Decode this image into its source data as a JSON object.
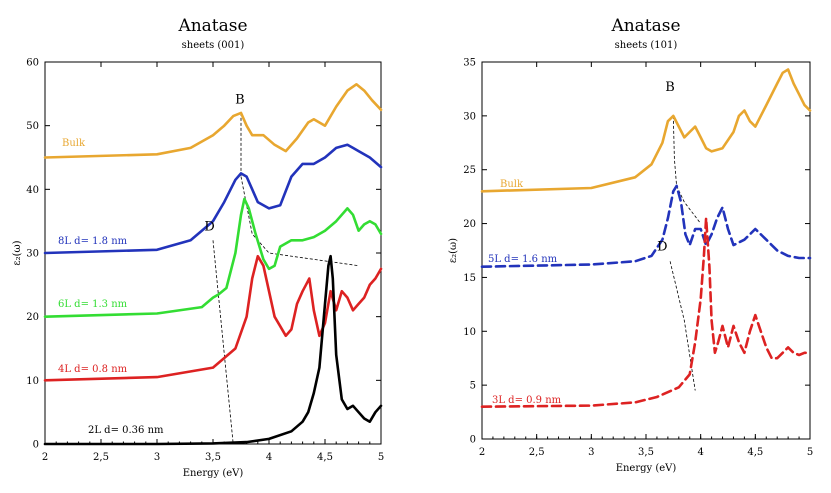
{
  "chart_data": [
    {
      "type": "line",
      "title": "Anatase",
      "subtitle": "sheets (001)",
      "xlabel": "Energy (eV)",
      "ylabel": "ε₂(ω)",
      "xlim": [
        2,
        5
      ],
      "ylim": [
        0,
        60
      ],
      "xticks": [
        "2",
        "2,5",
        "3",
        "3,5",
        "4",
        "4,5",
        "5"
      ],
      "yticks": [
        "0",
        "10",
        "20",
        "30",
        "40",
        "50",
        "60"
      ],
      "series": [
        {
          "name": "Bulk",
          "color": "#e8a730",
          "style": "solid",
          "x": [
            2.0,
            3.0,
            3.3,
            3.5,
            3.6,
            3.68,
            3.75,
            3.8,
            3.85,
            3.95,
            4.05,
            4.15,
            4.25,
            4.35,
            4.4,
            4.45,
            4.5,
            4.6,
            4.7,
            4.78,
            4.85,
            4.92,
            5.0
          ],
          "y": [
            45,
            45.5,
            46.5,
            48.5,
            50,
            51.5,
            52,
            50,
            48.5,
            48.5,
            47,
            46,
            48,
            50.5,
            51,
            50.5,
            50,
            53,
            55.5,
            56.5,
            55.5,
            54,
            52.5
          ]
        },
        {
          "name": "8L  d= 1.8 nm",
          "color": "#2233bb",
          "style": "solid",
          "x": [
            2.0,
            3.0,
            3.3,
            3.5,
            3.6,
            3.7,
            3.75,
            3.8,
            3.85,
            3.9,
            4.0,
            4.1,
            4.2,
            4.3,
            4.4,
            4.5,
            4.6,
            4.7,
            4.75,
            4.8,
            4.9,
            5.0
          ],
          "y": [
            30,
            30.5,
            32,
            35,
            38,
            41.5,
            42.5,
            42,
            40,
            38,
            37,
            37.5,
            42,
            44,
            44,
            45,
            46.5,
            47,
            46.5,
            46,
            45,
            43.5
          ]
        },
        {
          "name": "6L  d= 1.3 nm",
          "color": "#33dd33",
          "style": "solid",
          "x": [
            2.0,
            3.0,
            3.4,
            3.5,
            3.55,
            3.62,
            3.7,
            3.75,
            3.78,
            3.82,
            3.88,
            3.95,
            4.0,
            4.05,
            4.1,
            4.2,
            4.3,
            4.4,
            4.5,
            4.6,
            4.7,
            4.75,
            4.8,
            4.85,
            4.9,
            4.95,
            5.0
          ],
          "y": [
            20,
            20.5,
            21.5,
            23,
            23.5,
            24.5,
            30,
            36,
            38.5,
            37,
            33,
            29,
            27.5,
            28,
            31,
            32,
            32,
            32.5,
            33.5,
            35,
            37,
            36,
            33.5,
            34.5,
            35,
            34.5,
            33
          ]
        },
        {
          "name": "4L  d= 0.8 nm",
          "color": "#dd2222",
          "style": "solid",
          "x": [
            2.0,
            3.0,
            3.5,
            3.7,
            3.8,
            3.85,
            3.9,
            3.95,
            4.0,
            4.05,
            4.1,
            4.15,
            4.2,
            4.25,
            4.3,
            4.33,
            4.36,
            4.4,
            4.45,
            4.5,
            4.55,
            4.6,
            4.65,
            4.7,
            4.75,
            4.8,
            4.85,
            4.9,
            4.95,
            5.0
          ],
          "y": [
            10,
            10.5,
            12,
            15,
            20,
            26,
            29.5,
            28,
            24,
            20,
            18.5,
            17,
            18,
            22,
            24,
            25,
            26,
            21,
            17,
            19,
            24,
            21,
            24,
            23,
            21,
            22,
            23,
            25,
            26,
            27.5
          ]
        },
        {
          "name": "2L  d= 0.36 nm",
          "color": "#000000",
          "style": "solid",
          "x": [
            2.0,
            3.0,
            3.5,
            3.8,
            4.0,
            4.2,
            4.3,
            4.35,
            4.4,
            4.45,
            4.5,
            4.53,
            4.55,
            4.57,
            4.6,
            4.65,
            4.7,
            4.75,
            4.8,
            4.85,
            4.9,
            4.95,
            5.0
          ],
          "y": [
            0,
            0,
            0.1,
            0.3,
            0.8,
            2,
            3.5,
            5,
            8,
            12,
            22,
            28,
            29.5,
            26,
            14,
            7,
            5.5,
            6,
            5,
            4,
            3.5,
            5,
            6
          ]
        }
      ],
      "annotations": [
        {
          "text": "B",
          "x": 3.74,
          "y": 53.5
        },
        {
          "text": "D",
          "x": 3.47,
          "y": 33.5
        }
      ],
      "guides": [
        {
          "x": [
            3.75,
            3.75
          ],
          "y": [
            52,
            42
          ]
        },
        {
          "x": [
            3.75,
            3.85,
            4.0,
            4.8
          ],
          "y": [
            42,
            33,
            30,
            28
          ]
        },
        {
          "x": [
            3.5,
            3.68
          ],
          "y": [
            32,
            0
          ]
        }
      ]
    },
    {
      "type": "line",
      "title": "Anatase",
      "subtitle": "sheets (101)",
      "xlabel": "Energy (eV)",
      "ylabel": "ε₂(ω)",
      "xlim": [
        2,
        5
      ],
      "ylim": [
        0,
        35
      ],
      "xticks": [
        "2",
        "2,5",
        "3",
        "3,5",
        "4",
        "4,5",
        "5"
      ],
      "yticks": [
        "0",
        "5",
        "10",
        "15",
        "20",
        "25",
        "30",
        "35"
      ],
      "series": [
        {
          "name": "Bulk",
          "color": "#e8a730",
          "style": "solid",
          "x": [
            2.0,
            3.0,
            3.4,
            3.55,
            3.65,
            3.7,
            3.75,
            3.8,
            3.85,
            3.9,
            3.95,
            4.0,
            4.05,
            4.1,
            4.2,
            4.3,
            4.35,
            4.4,
            4.45,
            4.5,
            4.6,
            4.7,
            4.75,
            4.8,
            4.85,
            4.9,
            4.95,
            5.0
          ],
          "y": [
            23,
            23.3,
            24.3,
            25.5,
            27.5,
            29.5,
            30,
            29,
            28,
            28.5,
            29,
            28,
            27,
            26.7,
            27,
            28.5,
            30,
            30.5,
            29.5,
            29,
            31,
            33,
            34,
            34.3,
            33,
            32,
            31,
            30.5
          ]
        },
        {
          "name": "5L  d= 1.6 nm",
          "color": "#2233bb",
          "style": "dashed",
          "x": [
            2.0,
            3.0,
            3.4,
            3.55,
            3.65,
            3.7,
            3.75,
            3.78,
            3.82,
            3.86,
            3.9,
            3.95,
            4.0,
            4.05,
            4.1,
            4.15,
            4.2,
            4.25,
            4.3,
            4.4,
            4.5,
            4.6,
            4.7,
            4.8,
            4.9,
            5.0
          ],
          "y": [
            16,
            16.2,
            16.5,
            17,
            18.5,
            20.5,
            23,
            23.5,
            22,
            19,
            18,
            19.5,
            19.5,
            18,
            19,
            20.5,
            21.5,
            19.5,
            18,
            18.5,
            19.5,
            18.5,
            17.5,
            17,
            16.8,
            16.8
          ]
        },
        {
          "name": "3L  d= 0.9 nm",
          "color": "#dd2222",
          "style": "dashed",
          "x": [
            2.0,
            3.0,
            3.4,
            3.6,
            3.8,
            3.9,
            3.95,
            4.0,
            4.03,
            4.05,
            4.08,
            4.1,
            4.13,
            4.16,
            4.2,
            4.25,
            4.3,
            4.35,
            4.4,
            4.45,
            4.5,
            4.55,
            4.6,
            4.65,
            4.7,
            4.75,
            4.8,
            4.85,
            4.9,
            4.95,
            5.0
          ],
          "y": [
            3,
            3.1,
            3.4,
            3.9,
            4.8,
            6,
            9,
            13,
            17,
            20.5,
            16,
            11,
            8,
            9,
            10.5,
            8.5,
            10.5,
            9,
            8,
            10,
            11.5,
            10,
            8.5,
            7.5,
            7.5,
            8,
            8.5,
            8,
            7.8,
            8,
            8
          ]
        }
      ],
      "annotations": [
        {
          "text": "B",
          "x": 3.72,
          "y": 32.3
        },
        {
          "text": "D",
          "x": 3.65,
          "y": 17.5
        }
      ],
      "guides": [
        {
          "x": [
            3.75,
            3.76,
            3.78
          ],
          "y": [
            30,
            26,
            23.5
          ]
        },
        {
          "x": [
            3.78,
            3.85,
            4.0
          ],
          "y": [
            23.5,
            22,
            20
          ]
        },
        {
          "x": [
            3.72,
            3.85,
            3.95
          ],
          "y": [
            16.5,
            11,
            4.5
          ]
        }
      ]
    }
  ]
}
